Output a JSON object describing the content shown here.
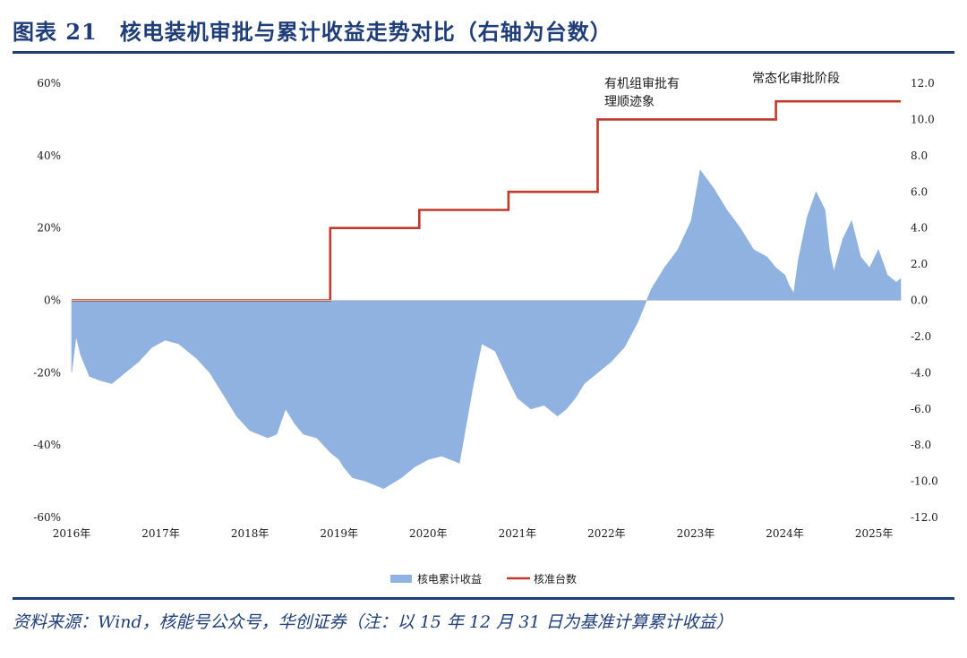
{
  "header": {
    "title": "图表 21　核电装机审批与累计收益走势对比（右轴为台数）"
  },
  "footer": {
    "source": "资料来源：Wind，核能号公众号，华创证券（注：以 15 年 12 月 31 日为基准计算累计收益）"
  },
  "chart_data": {
    "type": "area",
    "x_tick_labels": [
      "2016年",
      "2017年",
      "2018年",
      "2019年",
      "2020年",
      "2021年",
      "2022年",
      "2023年",
      "2024年",
      "2025年"
    ],
    "y_left": {
      "ticks": [
        -60,
        -40,
        -20,
        0,
        20,
        40,
        60
      ],
      "tick_labels": [
        "-60%",
        "-40%",
        "-20%",
        "0%",
        "20%",
        "40%",
        "60%"
      ],
      "range": [
        -60,
        60
      ]
    },
    "y_right": {
      "ticks": [
        -12,
        -10,
        -8,
        -6,
        -4,
        -2,
        0,
        2,
        4,
        6,
        8,
        10,
        12
      ],
      "tick_labels": [
        "-12.0",
        "-10.0",
        "-8.0",
        "-6.0",
        "-4.0",
        "-2.0",
        "0.0",
        "2.0",
        "4.0",
        "6.0",
        "8.0",
        "10.0",
        "12.0"
      ],
      "range": [
        -12,
        12
      ]
    },
    "series": [
      {
        "name": "核电累计收益",
        "kind": "area",
        "axis": "left",
        "color": "#8fb2e0",
        "x": [
          2016.0,
          2016.05,
          2016.1,
          2016.2,
          2016.3,
          2016.45,
          2016.6,
          2016.75,
          2016.9,
          2017.05,
          2017.2,
          2017.4,
          2017.55,
          2017.7,
          2017.85,
          2018.0,
          2018.1,
          2018.2,
          2018.3,
          2018.4,
          2018.5,
          2018.6,
          2018.75,
          2018.9,
          2019.0,
          2019.05,
          2019.15,
          2019.3,
          2019.5,
          2019.7,
          2019.85,
          2020.0,
          2020.15,
          2020.35,
          2020.5,
          2020.6,
          2020.75,
          2020.9,
          2021.0,
          2021.15,
          2021.3,
          2021.45,
          2021.55,
          2021.65,
          2021.75,
          2021.85,
          2021.95,
          2022.05,
          2022.2,
          2022.35,
          2022.5,
          2022.65,
          2022.8,
          2022.95,
          2023.05,
          2023.2,
          2023.35,
          2023.5,
          2023.65,
          2023.8,
          2023.9,
          2024.0,
          2024.05,
          2024.1,
          2024.15,
          2024.25,
          2024.35,
          2024.45,
          2024.5,
          2024.55,
          2024.65,
          2024.75,
          2024.85,
          2024.95,
          2025.05,
          2025.15,
          2025.25,
          2025.3
        ],
        "values": [
          -20,
          -10,
          -15,
          -21,
          -22,
          -23,
          -20,
          -17,
          -13,
          -11,
          -12,
          -16,
          -20,
          -26,
          -32,
          -36,
          -37,
          -38,
          -37,
          -30,
          -34,
          -37,
          -38,
          -42,
          -44,
          -46,
          -49,
          -50,
          -52,
          -49,
          -46,
          -44,
          -43,
          -45,
          -24,
          -12,
          -14,
          -22,
          -27,
          -30,
          -29,
          -32,
          -30,
          -27,
          -23,
          -21,
          -19,
          -17,
          -13,
          -6,
          3,
          9,
          14,
          22,
          36,
          31,
          25,
          20,
          14,
          12,
          9,
          7,
          4,
          2,
          11,
          23,
          30,
          25,
          14,
          8,
          17,
          22,
          12,
          9,
          14,
          7,
          5,
          6
        ]
      },
      {
        "name": "核准台数",
        "kind": "step",
        "axis": "right",
        "color": "#c0392b",
        "x": [
          2016.0,
          2018.9,
          2018.9,
          2019.9,
          2019.9,
          2020.9,
          2020.9,
          2021.9,
          2021.9,
          2022.9,
          2022.9,
          2023.9,
          2023.9,
          2024.1,
          2024.1,
          2025.3
        ],
        "values": [
          0,
          0,
          4,
          4,
          5,
          5,
          6,
          6,
          10,
          10,
          10,
          10,
          11,
          11,
          11,
          11
        ]
      }
    ],
    "annotations": [
      {
        "lines": [
          "有机组审批有",
          "理顺迹象"
        ]
      },
      {
        "lines": [
          "常态化审批阶段"
        ]
      }
    ],
    "legend": {
      "placement": "bottom-center"
    },
    "grid": false
  }
}
